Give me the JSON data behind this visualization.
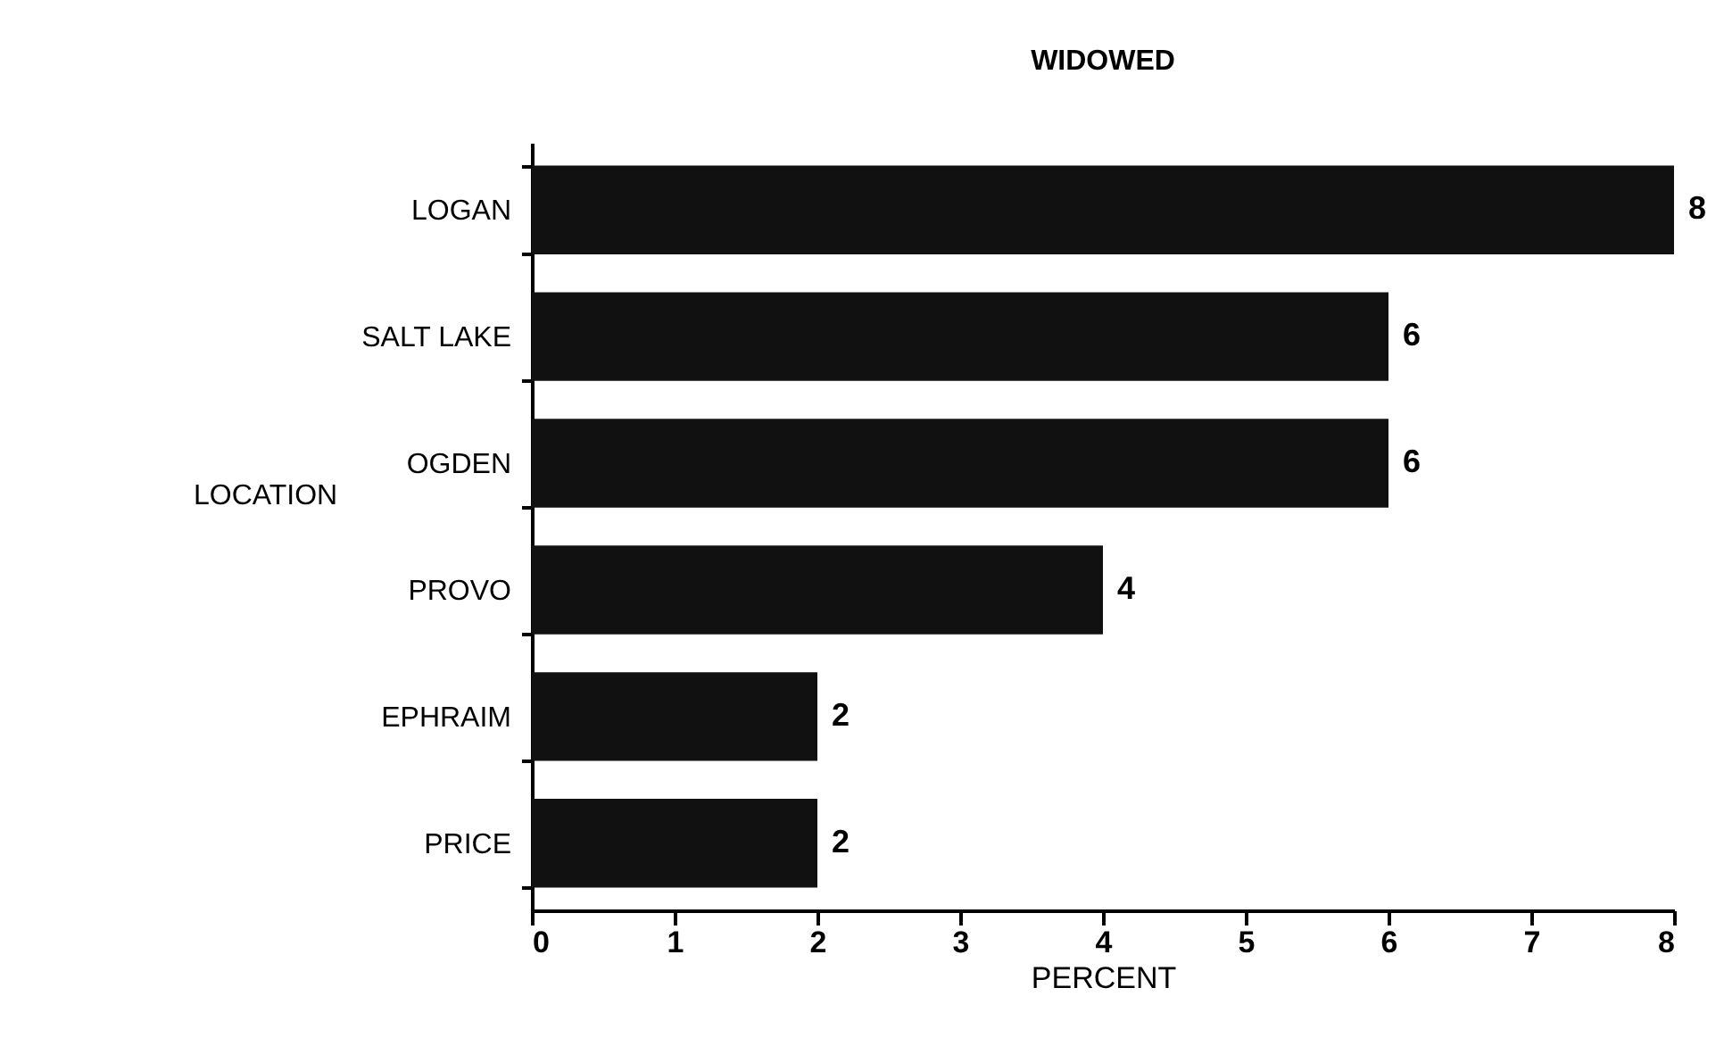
{
  "chart_data": {
    "type": "bar",
    "orientation": "horizontal",
    "title": "WIDOWED",
    "xlabel": "PERCENT",
    "ylabel": "LOCATION",
    "categories": [
      "LOGAN",
      "SALT LAKE",
      "OGDEN",
      "PROVO",
      "EPHRAIM",
      "PRICE"
    ],
    "values": [
      8,
      6,
      6,
      4,
      2,
      2
    ],
    "color": "#111111",
    "data_labels": true,
    "xlim": [
      0,
      8
    ],
    "xticks": [
      0,
      1,
      2,
      3,
      4,
      5,
      6,
      7,
      8
    ],
    "grid": false
  }
}
